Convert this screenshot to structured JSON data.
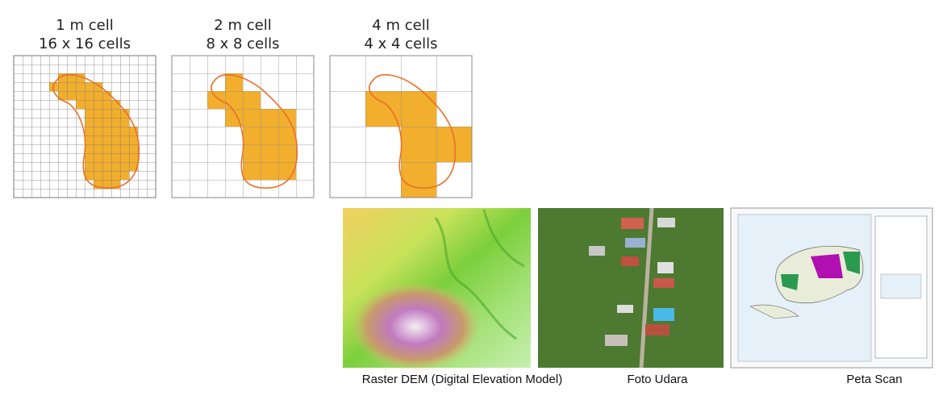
{
  "grids": [
    {
      "title": [
        "1 m cell",
        "16 x 16 cells"
      ]
    },
    {
      "title": [
        "2 m cell",
        "8 x 8 cells"
      ]
    },
    {
      "title": [
        "4 m cell",
        "4 x 4 cells"
      ]
    }
  ],
  "images": [
    {
      "caption": "Raster DEM (Digital Elevation Model)"
    },
    {
      "caption": "Foto Udara"
    },
    {
      "caption": "Peta Scan"
    }
  ]
}
